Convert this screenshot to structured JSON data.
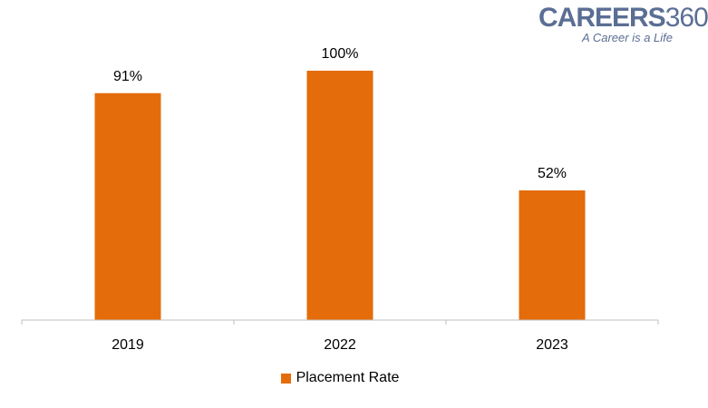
{
  "logo": {
    "brand": "CAREERS",
    "number": "360",
    "tagline": "A Career is a Life"
  },
  "colors": {
    "bar": "#e46c0a",
    "axis": "#bfbfbf",
    "logo": "#5b6e94"
  },
  "chart_data": {
    "type": "bar",
    "title": "",
    "xlabel": "",
    "ylabel": "",
    "categories": [
      "2019",
      "2022",
      "2023"
    ],
    "series": [
      {
        "name": "Placement Rate",
        "values": [
          91,
          100,
          52
        ],
        "labels": [
          "91%",
          "100%",
          "52%"
        ]
      }
    ],
    "ylim": [
      0,
      100
    ],
    "grid": false,
    "legend": "bottom"
  }
}
